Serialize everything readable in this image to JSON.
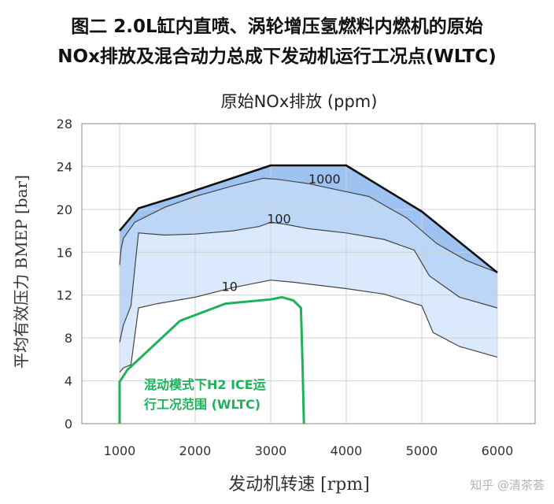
{
  "figure": {
    "title_line1": "图二 2.0L缸内直喷、涡轮增压氢燃料内燃机的原始",
    "title_line2": "NOx排放及混合动力总成下发动机运行工况点(WLTC)",
    "watermark": "知乎 @清茶荟"
  },
  "chart_data": {
    "type": "area",
    "title": "原始NOx排放 (ppm)",
    "xlabel": "发动机转速 [rpm]",
    "ylabel": "平均有效压力 BMEP [bar]",
    "xlim": [
      1000,
      6000
    ],
    "ylim": [
      0,
      28
    ],
    "xticks": [
      "1000",
      "2000",
      "3000",
      "4000",
      "5000",
      "6000"
    ],
    "yticks": [
      "0",
      "4",
      "8",
      "12",
      "16",
      "20",
      "24",
      "28"
    ],
    "grid": true,
    "full_load_curve": {
      "x": [
        1000,
        1250,
        1800,
        3000,
        4000,
        5000,
        6000
      ],
      "y": [
        18,
        20.1,
        21.3,
        24.1,
        24.1,
        19.8,
        14.1
      ]
    },
    "contours": [
      {
        "label": "1000",
        "x": [
          1000,
          1020,
          1050,
          1200,
          1600,
          2000,
          2500,
          2900,
          3100,
          3500,
          3900,
          4300,
          4800,
          5200,
          5600,
          6000
        ],
        "y": [
          14.8,
          16.3,
          17.3,
          18.8,
          20.2,
          21.2,
          22.2,
          22.9,
          22.8,
          22.4,
          21.8,
          21.2,
          19.2,
          16.8,
          15.2,
          14.1
        ]
      },
      {
        "label": "100",
        "x": [
          1000,
          1050,
          1150,
          1250,
          1600,
          2000,
          2500,
          2850,
          3000,
          3200,
          3500,
          4000,
          4500,
          4900,
          5100,
          5500,
          6000
        ],
        "y": [
          7.6,
          9.2,
          11,
          17.8,
          17.6,
          17.7,
          18,
          18.4,
          18.8,
          18.6,
          18.2,
          17.8,
          17.2,
          16.2,
          13.8,
          11.8,
          10.8
        ]
      },
      {
        "label": "10",
        "x": [
          1000,
          1050,
          1150,
          1250,
          1500,
          2000,
          2500,
          3000,
          3300,
          4000,
          4500,
          5000,
          5150,
          5500,
          6000
        ],
        "y": [
          4.8,
          5.2,
          5.5,
          10.8,
          11.2,
          11.8,
          12.7,
          13.4,
          13.2,
          12.6,
          12.1,
          11,
          8.5,
          7.2,
          6.2
        ]
      }
    ],
    "fills": [
      "#9ec3f2",
      "#bcd6f7",
      "#dae9fb"
    ],
    "hybrid_region": {
      "label_line1": "混动模式下H2 ICE运",
      "label_line2": "行工况范围 (WLTC)",
      "color": "#1db25b",
      "x": [
        1000,
        1000,
        1100,
        1800,
        2400,
        3000,
        3150,
        3300,
        3400,
        3420,
        3440
      ],
      "y": [
        0,
        3.9,
        5,
        9.6,
        11.2,
        11.6,
        11.8,
        11.5,
        10.8,
        6,
        0
      ]
    }
  }
}
